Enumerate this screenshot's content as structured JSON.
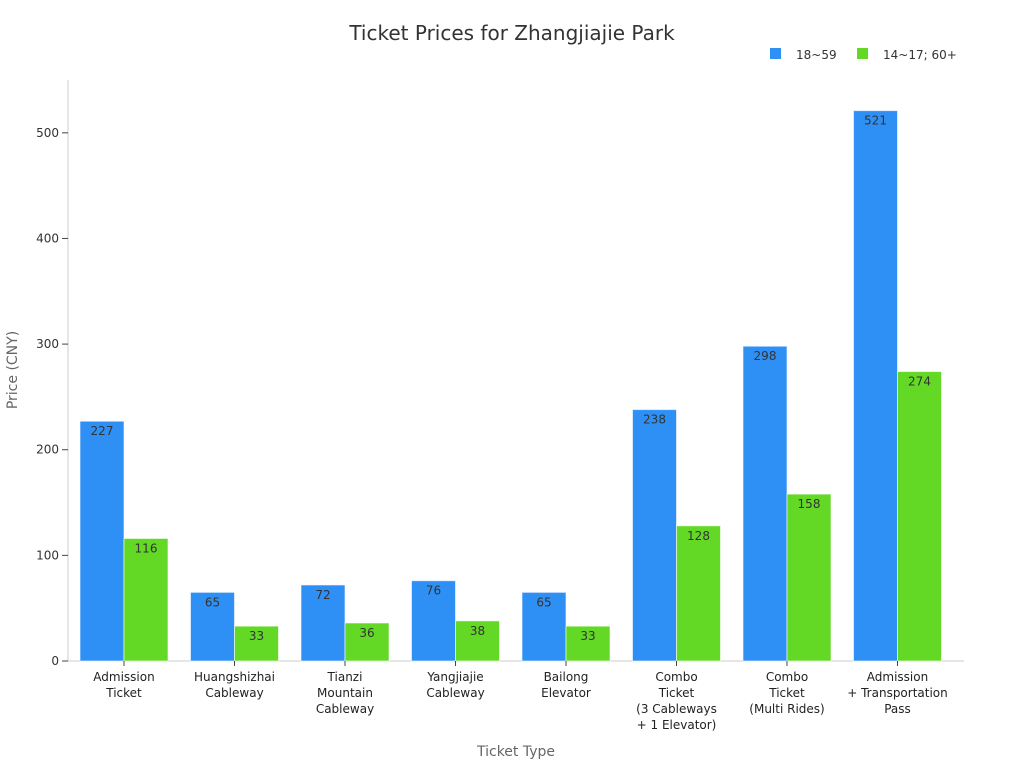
{
  "chart_data": {
    "type": "bar",
    "title": "Ticket Prices for Zhangjiajie Park",
    "xlabel": "Ticket Type",
    "ylabel": "Price (CNY)",
    "ylim": [
      0,
      550
    ],
    "yticks": [
      0,
      100,
      200,
      300,
      400,
      500
    ],
    "grid": false,
    "legend_position": "top-right",
    "categories": [
      [
        "Admission",
        "Ticket"
      ],
      [
        "Huangshizhai",
        "Cableway"
      ],
      [
        "Tianzi",
        "Mountain",
        "Cableway"
      ],
      [
        "Yangjiajie",
        "Cableway"
      ],
      [
        "Bailong",
        "Elevator"
      ],
      [
        "Combo",
        "Ticket",
        "(3 Cableways",
        "+ 1 Elevator)"
      ],
      [
        "Combo",
        "Ticket",
        "(Multi Rides)"
      ],
      [
        "Admission",
        "+ Transportation",
        "Pass"
      ]
    ],
    "series": [
      {
        "name": "18~59",
        "color": "#2e90f5",
        "values": [
          227,
          65,
          72,
          76,
          65,
          238,
          298,
          521
        ]
      },
      {
        "name": "14~17; 60+",
        "color": "#63d926",
        "values": [
          116,
          33,
          36,
          38,
          33,
          128,
          158,
          274
        ]
      }
    ]
  }
}
